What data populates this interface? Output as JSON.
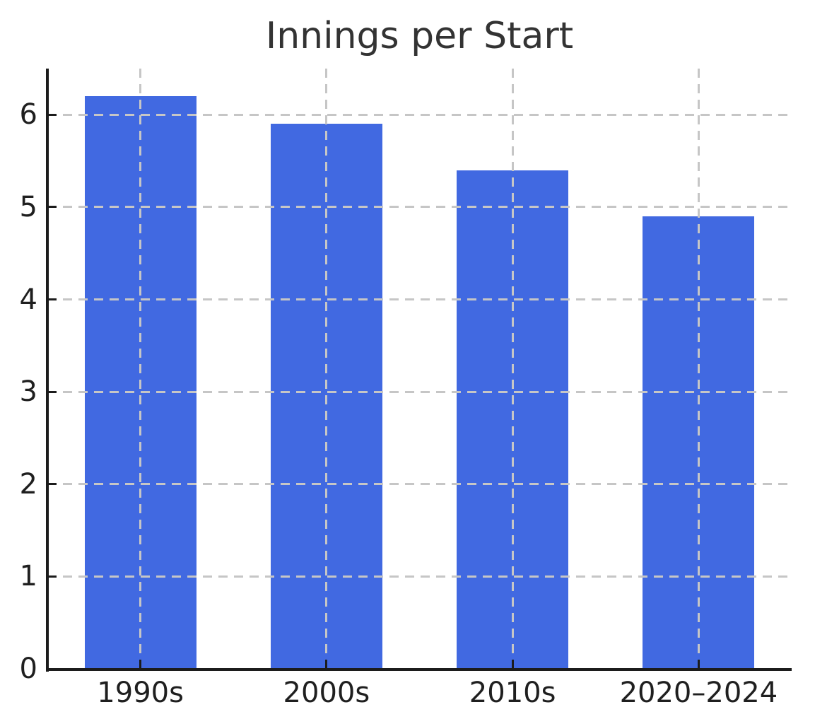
{
  "chart_data": {
    "type": "bar",
    "title": "Innings per Start",
    "categories": [
      "1990s",
      "2000s",
      "2010s",
      "2020–2024"
    ],
    "values": [
      6.2,
      5.9,
      5.4,
      4.9
    ],
    "xlabel": "",
    "ylabel": "",
    "ylim": [
      0,
      6.5
    ],
    "yticks": [
      0,
      1,
      2,
      3,
      4,
      5,
      6
    ],
    "grid": true,
    "grid_style": "dashed",
    "grid_above_bars": true,
    "legend": false,
    "tick_direction": "in",
    "colors": {
      "bar": "#4169e1",
      "grid": "#c6c6c6",
      "axis": "#1c1c1c",
      "tick_label": "#1f1f1f",
      "title": "#333333",
      "background": "#ffffff"
    }
  }
}
